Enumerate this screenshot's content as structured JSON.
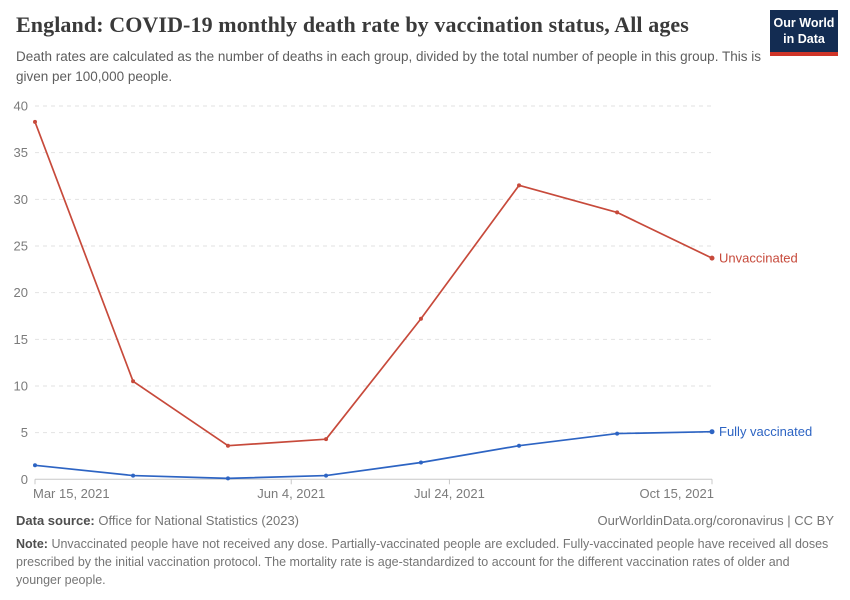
{
  "header": {
    "title": "England: COVID-19 monthly death rate by vaccination status, All ages",
    "subtitle": "Death rates are calculated as the number of deaths in each group, divided by the total number of people in this group. This is given per 100,000 people.",
    "logo": {
      "line1": "Our World",
      "line2": "in Data",
      "bg_color": "#132c52",
      "bar_color": "#cf3428"
    }
  },
  "chart_data": {
    "type": "line",
    "title": "England: COVID-19 monthly death rate by vaccination status, All ages",
    "x": [
      "Mar 15, 2021",
      "Apr 15, 2021",
      "May 15, 2021",
      "Jun 15, 2021",
      "Jul 15, 2021",
      "Aug 15, 2021",
      "Sep 15, 2021",
      "Oct 15, 2021"
    ],
    "x_days": [
      0,
      31,
      61,
      92,
      122,
      153,
      184,
      214
    ],
    "series": [
      {
        "name": "Unvaccinated",
        "color": "#c74a3b",
        "values": [
          38.3,
          10.5,
          3.6,
          4.3,
          17.2,
          31.5,
          28.6,
          23.7
        ]
      },
      {
        "name": "Fully vaccinated",
        "color": "#2d64c3",
        "values": [
          1.5,
          0.4,
          0.1,
          0.4,
          1.8,
          3.6,
          4.9,
          5.1
        ]
      }
    ],
    "ylim": [
      0,
      40
    ],
    "yticks": [
      0,
      5,
      10,
      15,
      20,
      25,
      30,
      35,
      40
    ],
    "xticks": [
      {
        "label": "Mar 15, 2021",
        "day": 0,
        "anchor": "start"
      },
      {
        "label": "Jun 4, 2021",
        "day": 81,
        "anchor": "middle"
      },
      {
        "label": "Jul 24, 2021",
        "day": 131,
        "anchor": "middle"
      },
      {
        "label": "Oct 15, 2021",
        "day": 214,
        "anchor": "end"
      }
    ],
    "grid": "horizontal-dashed",
    "legend_position": "line-end-labels",
    "axis_text_color": "#7b7b7b",
    "grid_color": "#e2e2e2",
    "baseline_color": "#c8c8c8"
  },
  "footer": {
    "datasource_label": "Data source:",
    "datasource": "Office for National Statistics (2023)",
    "attribution": "OurWorldinData.org/coronavirus | CC BY",
    "note_label": "Note:",
    "note": "Unvaccinated people have not received any dose. Partially-vaccinated people are excluded. Fully-vaccinated people have received all doses prescribed by the initial vaccination protocol. The mortality rate is age-standardized to account for the different vaccination rates of older and younger people."
  }
}
